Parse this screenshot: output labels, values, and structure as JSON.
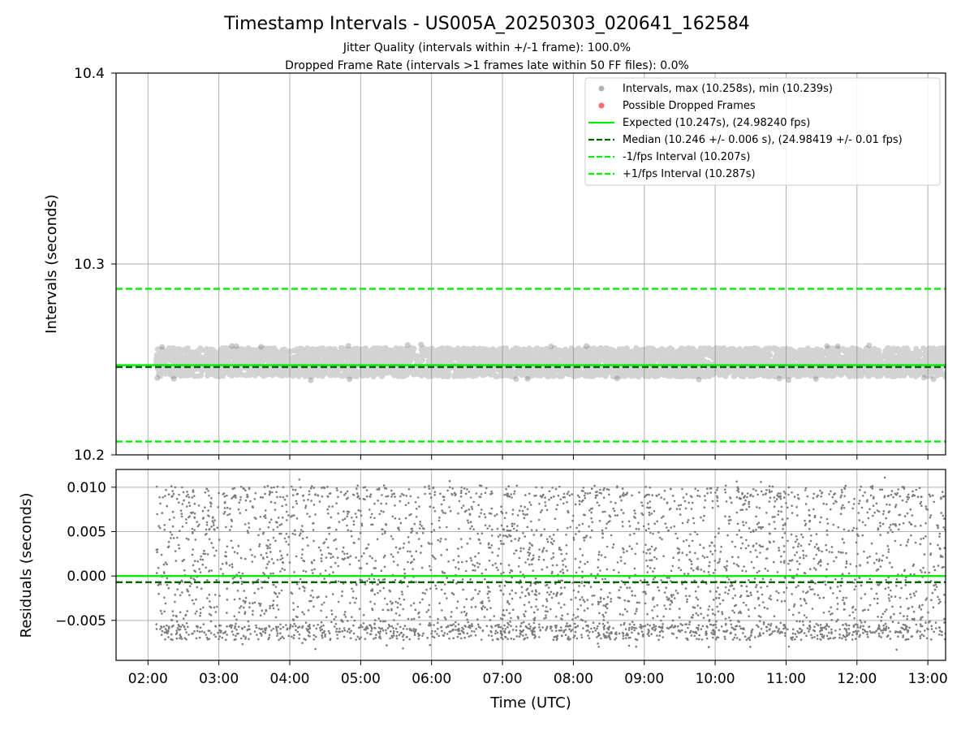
{
  "title": "Timestamp Intervals - US005A_20250303_020641_162584",
  "subtitle_lines": [
    "Jitter Quality (intervals within +/-1 frame): 100.0%",
    "Dropped Frame Rate (intervals >1 frames late within 50 FF files): 0.0%"
  ],
  "colors": {
    "points": "#808080",
    "dropped": "#ff4444",
    "expected": "#00ee00",
    "median": "#006400",
    "bounds": "#00ee00",
    "grid": "#b0b0b0"
  },
  "chart_data": [
    {
      "type": "scatter",
      "panel": "intervals",
      "ylabel": "Intervals (seconds)",
      "ylim": [
        10.2,
        10.4
      ],
      "yticks": [
        "10.2",
        "10.3",
        "10.4"
      ],
      "xlim": [
        "01:33",
        "13:15"
      ],
      "grid": true,
      "legend_position": "top-right",
      "scatter_band": {
        "x_start": "02:07",
        "x_end": "13:15",
        "y_min": 10.239,
        "y_max": 10.258
      },
      "lines": [
        {
          "name": "Expected (10.247s), (24.98240 fps)",
          "y": 10.247,
          "style": "solid"
        },
        {
          "name": "Median (10.246 +/- 0.006 s), (24.98419 +/- 0.01 fps)",
          "y": 10.246,
          "style": "dashed"
        },
        {
          "name": "-1/fps Interval (10.207s)",
          "y": 10.207,
          "style": "dashed"
        },
        {
          "name": "+1/fps Interval (10.287s)",
          "y": 10.287,
          "style": "dashed"
        }
      ],
      "series": [
        {
          "name": "Intervals, max (10.258s), min (10.239s)",
          "marker": "circle"
        },
        {
          "name": "Possible Dropped Frames",
          "marker": "circle",
          "count": 0
        }
      ]
    },
    {
      "type": "scatter",
      "panel": "residuals",
      "ylabel": "Residuals (seconds)",
      "xlabel": "Time (UTC)",
      "ylim": [
        -0.0095,
        0.012
      ],
      "yticks": [
        -0.005,
        0.0,
        0.005,
        0.01
      ],
      "ytick_labels": [
        "−0.005",
        "0.000",
        "0.005",
        "0.010"
      ],
      "xticks": [
        "02:00",
        "03:00",
        "04:00",
        "05:00",
        "06:00",
        "07:00",
        "08:00",
        "09:00",
        "10:00",
        "11:00",
        "12:00",
        "13:00"
      ],
      "xlim": [
        "01:33",
        "13:15"
      ],
      "grid": true,
      "residual_range": [
        -0.0083,
        0.0111
      ],
      "reference_lines": [
        {
          "name": "Expected",
          "y": 0.0,
          "style": "solid"
        },
        {
          "name": "Median",
          "y": -0.0007,
          "style": "dashed"
        }
      ]
    }
  ]
}
